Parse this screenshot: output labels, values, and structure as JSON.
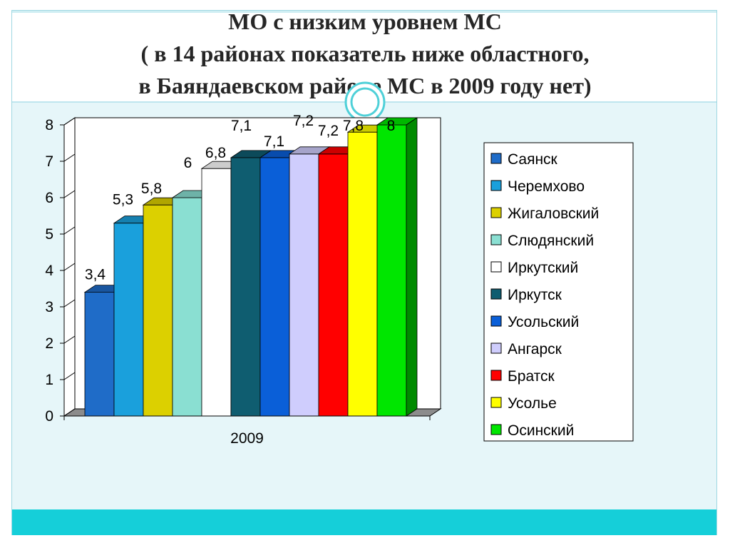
{
  "slide": {
    "title_lines": [
      "МО с низким уровнем МС",
      "( в 14 районах показатель ниже областного,",
      "в Баяндаевском районе МС в 2009 году нет)"
    ],
    "colors": {
      "frame_bg": "#e6f6f9",
      "bottom_band": "#15cfd9",
      "ring": "#4fd0d8"
    }
  },
  "chart_data": {
    "type": "bar",
    "title": "",
    "xlabel": "",
    "ylabel": "",
    "categories": [
      "2009"
    ],
    "ylim": [
      0,
      8
    ],
    "yticks": [
      0,
      1,
      2,
      3,
      4,
      5,
      6,
      7,
      8
    ],
    "grid": false,
    "legend_position": "right",
    "series": [
      {
        "name": "Саянск",
        "values": [
          3.4
        ],
        "label": "3,4",
        "color": "#1f6cc8"
      },
      {
        "name": "Черемхово",
        "values": [
          5.3
        ],
        "label": "5,3",
        "color": "#1aa0dc"
      },
      {
        "name": "Жигаловский",
        "values": [
          5.8
        ],
        "label": "5,8",
        "color": "#dcd000"
      },
      {
        "name": "Слюдянский",
        "values": [
          6.0
        ],
        "label": "6",
        "color": "#8adfd2"
      },
      {
        "name": "Иркутский",
        "values": [
          6.8
        ],
        "label": "6,8",
        "color": "#ffffff"
      },
      {
        "name": "Иркутск",
        "values": [
          7.1
        ],
        "label": "7,1",
        "color": "#0f5d70"
      },
      {
        "name": "Усольский",
        "values": [
          7.1
        ],
        "label": "7,1",
        "color": "#0a5fd8"
      },
      {
        "name": "Ангарск",
        "values": [
          7.2
        ],
        "label": "7,2",
        "color": "#cfcdfd"
      },
      {
        "name": "Братск",
        "values": [
          7.2
        ],
        "label": "7,2",
        "color": "#ff0000"
      },
      {
        "name": "Усолье",
        "values": [
          7.8
        ],
        "label": "7,8",
        "color": "#ffff00"
      },
      {
        "name": "Осинский",
        "values": [
          8.0
        ],
        "label": "8",
        "color": "#00e600"
      }
    ]
  }
}
